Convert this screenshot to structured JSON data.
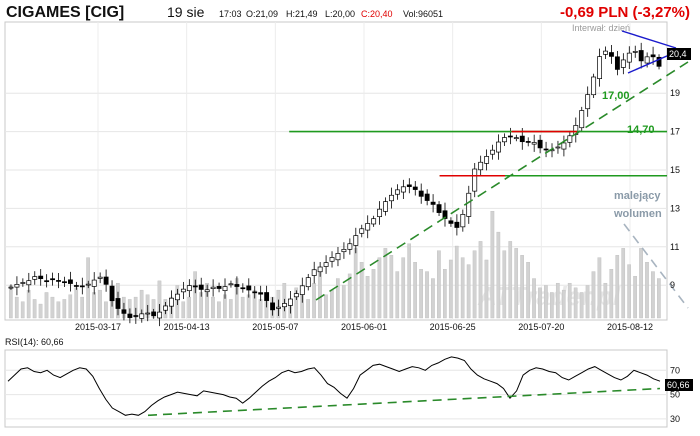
{
  "header": {
    "ticker": "CIGAMES [CIG]",
    "date": "19 sie",
    "time": "17:03",
    "open": "O:21,09",
    "high": "H:21,49",
    "low": "L:20,00",
    "close": "C:20,40",
    "volume": "Vol:96051",
    "change": "-0,69 PLN (-3,27%)",
    "interval": "Interwał: dzień"
  },
  "watermark": "ATTrader.pl",
  "colors": {
    "change": "#e00000",
    "close_label_bg": "#000000",
    "resistance": "#e00000",
    "support": "#1f9a1f",
    "trend_green": "#2a8a2a",
    "triangle": "#1a1acc",
    "volume_bar": "#d2d2d2",
    "rsi_line": "#000000"
  },
  "chart_data": [
    {
      "type": "candlestick",
      "y_ticks": [
        9,
        11,
        13,
        15,
        17,
        19
      ],
      "x_ticks": [
        "2015-03-17",
        "2015-04-13",
        "2015-05-07",
        "2015-06-01",
        "2015-06-25",
        "2015-07-20",
        "2015-08-12"
      ],
      "ylim": [
        7.5,
        22.5
      ],
      "last_close_label": "20,4",
      "last_close": 20.4,
      "grid": true,
      "price_path": [
        [
          0,
          8.9
        ],
        [
          6,
          9.1
        ],
        [
          12,
          9.2
        ],
        [
          18,
          9.5
        ],
        [
          24,
          9.2
        ],
        [
          30,
          9.3
        ],
        [
          36,
          9.2
        ],
        [
          42,
          9.1
        ],
        [
          48,
          8.9
        ],
        [
          54,
          9.0
        ],
        [
          60,
          9.3
        ],
        [
          66,
          9.5
        ],
        [
          70,
          8.5
        ],
        [
          74,
          7.9
        ],
        [
          78,
          7.7
        ],
        [
          84,
          7.3
        ],
        [
          90,
          7.4
        ],
        [
          96,
          7.6
        ],
        [
          102,
          7.4
        ],
        [
          108,
          7.7
        ],
        [
          114,
          8.3
        ],
        [
          120,
          8.6
        ],
        [
          126,
          9.0
        ],
        [
          132,
          8.9
        ],
        [
          138,
          8.7
        ],
        [
          144,
          8.9
        ],
        [
          150,
          8.8
        ],
        [
          156,
          9.1
        ],
        [
          162,
          8.9
        ],
        [
          168,
          8.8
        ],
        [
          174,
          8.6
        ],
        [
          180,
          8.5
        ],
        [
          186,
          7.7
        ],
        [
          192,
          7.9
        ],
        [
          198,
          8.2
        ],
        [
          204,
          8.6
        ],
        [
          210,
          9.2
        ],
        [
          216,
          9.8
        ],
        [
          222,
          10.0
        ],
        [
          228,
          10.4
        ],
        [
          234,
          10.7
        ],
        [
          240,
          11.0
        ],
        [
          246,
          11.6
        ],
        [
          252,
          12.1
        ],
        [
          258,
          12.4
        ],
        [
          264,
          13.1
        ],
        [
          270,
          13.6
        ],
        [
          276,
          14.0
        ],
        [
          282,
          14.2
        ],
        [
          288,
          14.0
        ],
        [
          294,
          13.5
        ],
        [
          300,
          13.3
        ],
        [
          306,
          12.7
        ],
        [
          312,
          12.3
        ],
        [
          318,
          12.0
        ],
        [
          324,
          13.0
        ],
        [
          330,
          15.0
        ],
        [
          336,
          15.5
        ],
        [
          342,
          15.9
        ],
        [
          348,
          16.5
        ],
        [
          354,
          16.8
        ],
        [
          360,
          16.7
        ],
        [
          366,
          16.4
        ],
        [
          372,
          16.5
        ],
        [
          378,
          16.1
        ],
        [
          384,
          16.0
        ],
        [
          390,
          16.2
        ],
        [
          396,
          16.5
        ],
        [
          402,
          17.2
        ],
        [
          408,
          18.3
        ],
        [
          414,
          19.5
        ],
        [
          420,
          21.0
        ],
        [
          426,
          21.3
        ],
        [
          432,
          20.2
        ],
        [
          438,
          20.9
        ],
        [
          444,
          21.3
        ],
        [
          450,
          20.6
        ],
        [
          456,
          21.1
        ],
        [
          462,
          20.4
        ]
      ],
      "volume": [
        1.4,
        0.9,
        0.7,
        1.2,
        0.8,
        0.6,
        1.1,
        0.9,
        0.7,
        0.8,
        1.0,
        1.3,
        0.9,
        2.6,
        1.1,
        1.2,
        0.7,
        0.8,
        1.5,
        0.9,
        0.8,
        0.9,
        1.2,
        1.0,
        0.8,
        1.6,
        0.8,
        0.9,
        1.4,
        0.7,
        0.9,
        2.0,
        1.1,
        1.5,
        0.9,
        0.7,
        1.0,
        0.8,
        1.7,
        0.9,
        1.0,
        1.2,
        0.8,
        1.1,
        0.9,
        1.2,
        1.5,
        0.7,
        1.3,
        1.0,
        0.8,
        1.5,
        2.2,
        1.0,
        1.2,
        1.7,
        1.4,
        1.9,
        3.0,
        2.4,
        1.8,
        2.1,
        2.6,
        3.0,
        2.7,
        2.0,
        2.6,
        3.2,
        2.4,
        2.1,
        2.0,
        1.7,
        2.9,
        2.1,
        2.5,
        3.1,
        2.6,
        2.3,
        2.9,
        3.3,
        2.5,
        4.6,
        3.7,
        2.9,
        3.3,
        3.0,
        2.7,
        2.4,
        1.7,
        1.3,
        1.4,
        1.1,
        1.5,
        1.2,
        1.5,
        1.3,
        1.1,
        1.4,
        2.0,
        2.6,
        1.5,
        2.1,
        2.7,
        3.0,
        2.3,
        1.8,
        3.0,
        2.4,
        2.0,
        1.7
      ],
      "volume_scale_max": 5.6,
      "annotations": [
        {
          "type": "hline",
          "value": 17.0,
          "label": "17,00",
          "color": "support",
          "x_from": 0.43
        },
        {
          "type": "hline",
          "value": 14.7,
          "label": "14,70",
          "color": "support",
          "x_from": 0.66
        },
        {
          "type": "hline",
          "value": 17.0,
          "color": "resistance",
          "x_from": 0.77,
          "x_to": 0.87
        },
        {
          "type": "hline",
          "value": 14.7,
          "color": "resistance",
          "x_from": 0.66,
          "x_to": 0.76
        },
        {
          "type": "text",
          "label": "malejący",
          "x": 0.935,
          "y": 0.56
        },
        {
          "type": "text",
          "label": "wolumen",
          "x": 0.935,
          "y": 0.64
        }
      ]
    },
    {
      "type": "line",
      "title": "RSI(14): 60,66",
      "y_ticks": [
        30,
        50,
        70
      ],
      "ylim": [
        25,
        85
      ],
      "last_value_label": "60,66",
      "last_value": 60.66,
      "values": [
        61,
        66,
        71,
        72,
        69,
        68,
        70,
        66,
        64,
        67,
        70,
        72,
        71,
        65,
        55,
        46,
        39,
        36,
        33,
        34,
        33,
        36,
        41,
        45,
        48,
        50,
        52,
        51,
        50,
        49,
        53,
        52,
        51,
        50,
        48,
        47,
        43,
        47,
        52,
        57,
        61,
        64,
        68,
        70,
        68,
        69,
        71,
        72,
        66,
        59,
        56,
        51,
        47,
        55,
        66,
        70,
        74,
        75,
        73,
        71,
        69,
        71,
        73,
        72,
        70,
        74,
        76,
        79,
        81,
        80,
        78,
        71,
        66,
        63,
        61,
        59,
        55,
        47,
        53,
        66,
        70,
        72,
        71,
        69,
        68,
        64,
        62,
        65,
        68,
        71,
        73,
        70,
        67,
        64,
        62,
        65,
        70,
        68,
        66,
        63,
        61
      ]
    }
  ]
}
